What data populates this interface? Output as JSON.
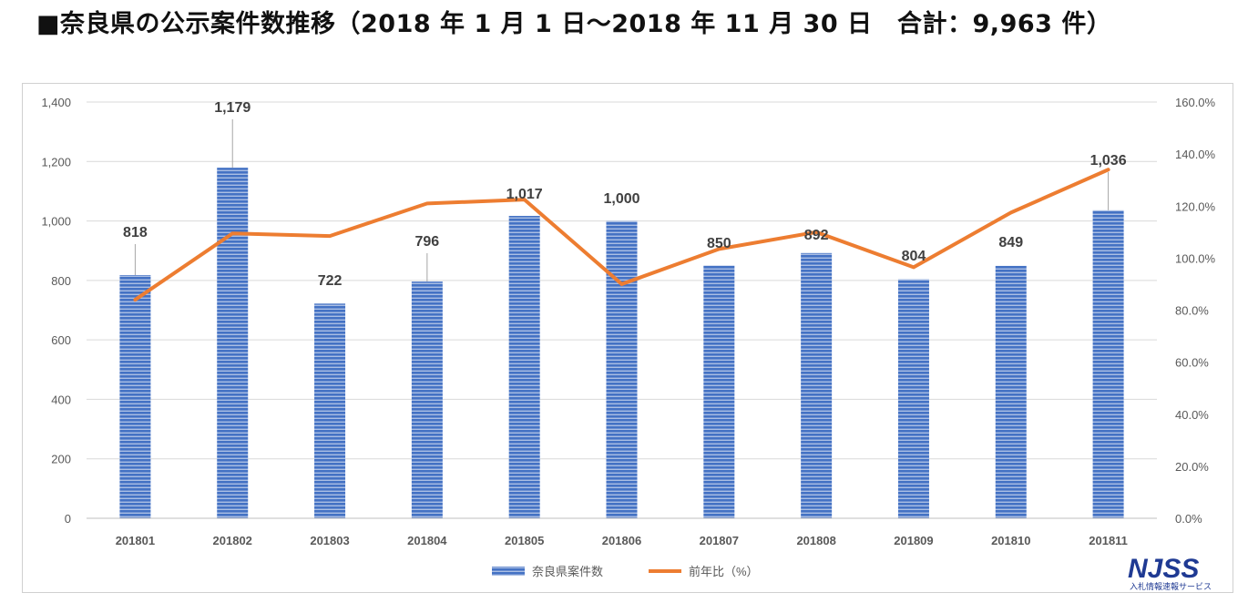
{
  "title": "■奈良県の公示案件数推移（2018 年 1 月 1 日〜2018 年 11 月 30 日　合計：9,963 件）",
  "logo": {
    "text": "NJSS",
    "subtitle": "入札情報速報サービス"
  },
  "colors": {
    "bar": "#4472c4",
    "bar_stripe": "#ffffff",
    "line": "#ed7d31",
    "text": "#595959",
    "grid": "#d9d9d9"
  },
  "chart_data": {
    "type": "bar",
    "categories": [
      "201801",
      "201802",
      "201803",
      "201804",
      "201805",
      "201806",
      "201807",
      "201808",
      "201809",
      "201810",
      "201811"
    ],
    "series": [
      {
        "name": "奈良県案件数",
        "type": "bar",
        "axis": "left",
        "values": [
          818,
          1179,
          722,
          796,
          1017,
          1000,
          850,
          892,
          804,
          849,
          1036
        ],
        "labels": [
          "818",
          "1,179",
          "722",
          "796",
          "1,017",
          "1,000",
          "850",
          "892",
          "804",
          "849",
          "1,036"
        ]
      },
      {
        "name": "前年比（%）",
        "type": "line",
        "axis": "right",
        "values": [
          84,
          109.5,
          108.5,
          121,
          122.5,
          90,
          103.5,
          110,
          96.5,
          117.5,
          134
        ]
      }
    ],
    "y_left": {
      "min": 0,
      "max": 1400,
      "ticks": [
        "0",
        "200",
        "400",
        "600",
        "800",
        "1,000",
        "1,200",
        "1,400"
      ]
    },
    "y_right": {
      "min": 0,
      "max": 160,
      "ticks": [
        "0.0%",
        "20.0%",
        "40.0%",
        "60.0%",
        "80.0%",
        "100.0%",
        "120.0%",
        "140.0%",
        "160.0%"
      ]
    },
    "grid": true,
    "legend": {
      "position": "bottom",
      "items": [
        "奈良県案件数",
        "前年比（%）"
      ]
    }
  }
}
